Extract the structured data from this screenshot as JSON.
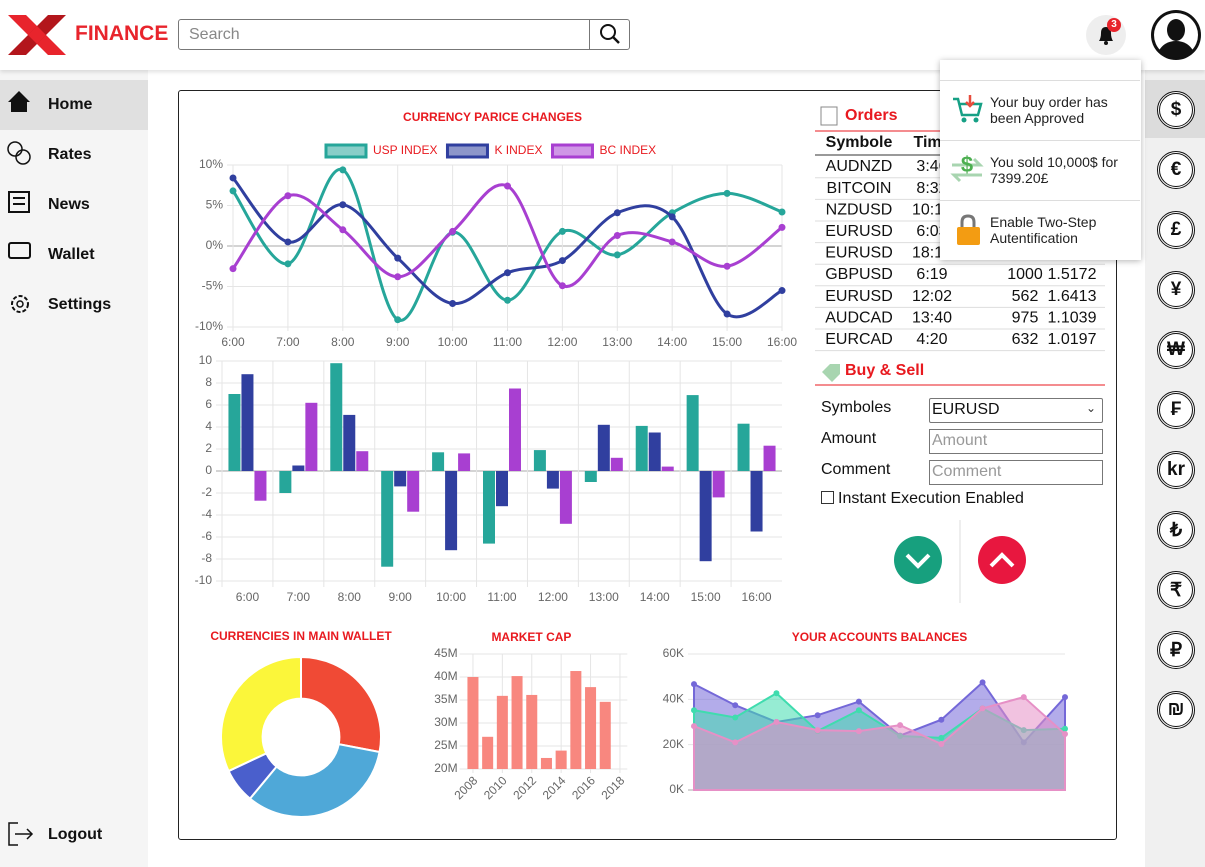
{
  "header": {
    "brand": "FINANCE",
    "search_placeholder": "Search",
    "notification_count": 3
  },
  "sidebar": {
    "items": [
      "Home",
      "Rates",
      "News",
      "Wallet",
      "Settings"
    ],
    "logout": "Logout"
  },
  "notifications": [
    {
      "text": "Your buy order has been Approved"
    },
    {
      "text": "You sold 10,000$ for 7399.20£"
    },
    {
      "text": "Enable Two-Step Autentification"
    }
  ],
  "currencies": [
    "$",
    "€",
    "£",
    "¥",
    "₩",
    "₣",
    "kr",
    "₺",
    "₹",
    "₽",
    "₪"
  ],
  "line_chart": {
    "type": "line",
    "title": "CURRENCY PARICE CHANGES",
    "categories": [
      "6:00",
      "7:00",
      "8:00",
      "9:00",
      "10:00",
      "11:00",
      "12:00",
      "13:00",
      "14:00",
      "15:00",
      "16:00"
    ],
    "series": [
      {
        "name": "USP INDEX",
        "color": "#26a69a",
        "values": [
          6.8,
          -2.2,
          9.4,
          -9.1,
          1.7,
          -6.7,
          1.8,
          -1.1,
          4.1,
          6.5,
          4.2
        ]
      },
      {
        "name": "K INDEX",
        "color": "#303f9f",
        "values": [
          8.4,
          0.5,
          5.1,
          -1.5,
          -7.1,
          -3.3,
          -1.8,
          4.1,
          3.6,
          -8.4,
          -5.5
        ]
      },
      {
        "name": "BC INDEX",
        "color": "#a83fd1",
        "values": [
          -2.8,
          6.2,
          2,
          -3.8,
          1.8,
          7.4,
          -4.9,
          1.3,
          0.5,
          -2.5,
          2.3
        ]
      }
    ],
    "ylim": [
      -10,
      10
    ],
    "yticks": [
      {
        "value": -10,
        "label": "-10%"
      },
      {
        "value": -5,
        "label": "-5%"
      },
      {
        "value": 0,
        "label": "0%"
      },
      {
        "value": 5,
        "label": "5%"
      },
      {
        "value": 10,
        "label": "10%"
      }
    ],
    "grid": true,
    "legend": "top"
  },
  "bar_chart": {
    "type": "bar",
    "categories": [
      "6:00",
      "7:00",
      "8:00",
      "9:00",
      "10:00",
      "11:00",
      "12:00",
      "13:00",
      "14:00",
      "15:00",
      "16:00"
    ],
    "series": [
      {
        "color": "#26a69a",
        "values": [
          7,
          -2,
          9.8,
          -8.7,
          1.7,
          -6.6,
          1.9,
          -1,
          4.1,
          6.9,
          4.3
        ]
      },
      {
        "color": "#303f9f",
        "values": [
          8.8,
          0.5,
          5.1,
          -1.4,
          -7.2,
          -3.2,
          -1.6,
          4.2,
          3.5,
          -8.2,
          -5.5
        ]
      },
      {
        "color": "#a83fd1",
        "values": [
          -2.7,
          6.2,
          1.8,
          -3.7,
          1.6,
          7.5,
          -4.8,
          1.2,
          0.4,
          -2.4,
          2.3
        ]
      }
    ],
    "ylim": [
      -10,
      10
    ],
    "yticks": [
      -10,
      -8,
      -6,
      -4,
      -2,
      0,
      2,
      4,
      6,
      8,
      10
    ],
    "grid": true
  },
  "orders": {
    "title": "Orders",
    "columns": [
      "Symbole",
      "Time"
    ],
    "rows": [
      [
        "AUDNZD",
        "3:46"
      ],
      [
        "BITCOIN",
        "8:32"
      ],
      [
        "NZDUSD",
        "10:15"
      ],
      [
        "EURUSD",
        "6:03"
      ],
      [
        "EURUSD",
        "18:10"
      ],
      [
        "GBPUSD",
        "6:19",
        1000,
        1.5172
      ],
      [
        "EURUSD",
        "12:02",
        562,
        1.6413
      ],
      [
        "AUDCAD",
        "13:40",
        975,
        1.1039
      ],
      [
        "EURCAD",
        "4:20",
        632,
        1.0197
      ]
    ]
  },
  "buy_sell": {
    "title": "Buy & Sell",
    "fields": [
      {
        "label": "Symboles",
        "value": "EURUSD"
      },
      {
        "label": "Amount",
        "placeholder": "Amount"
      },
      {
        "label": "Comment",
        "placeholder": "Comment"
      }
    ],
    "checkbox": "Instant Execution Enabled"
  },
  "wallet_chart": {
    "type": "pie",
    "title": "CURRENCIES IN MAIN WALLET",
    "values": [
      28,
      33,
      7,
      32
    ],
    "colors": [
      "#f04a35",
      "#4fa8d8",
      "#4a5fcc",
      "#fbf63a"
    ],
    "hole": true
  },
  "market_cap_chart": {
    "type": "bar",
    "title": "MARKET CAP",
    "x": [
      2008,
      2009,
      2010,
      2011,
      2012,
      2013,
      2014,
      2015,
      2016,
      2017
    ],
    "values": [
      40,
      27,
      35.9,
      40.2,
      36.1,
      22.4,
      24,
      41.3,
      37.8,
      34.6
    ],
    "color": "#f8877f",
    "xlim": [
      2007.5,
      2018.5
    ],
    "xticks": [
      2008,
      2010,
      2012,
      2014,
      2016,
      2018
    ],
    "ylim": [
      20,
      45
    ],
    "yticks": [
      {
        "value": 20,
        "label": "20M"
      },
      {
        "value": 25,
        "label": "25M"
      },
      {
        "value": 30,
        "label": "30M"
      },
      {
        "value": 35,
        "label": "35M"
      },
      {
        "value": 40,
        "label": "40M"
      },
      {
        "value": 45,
        "label": "45M"
      }
    ],
    "grid": true
  },
  "balances_chart": {
    "type": "area",
    "title": "YOUR ACCOUNTS BALANCES",
    "series": [
      {
        "color": "#7468d8",
        "values": [
          46.7,
          37.4,
          30,
          33,
          39,
          24,
          31,
          47.5,
          21,
          41
        ]
      },
      {
        "color": "#3fdcae",
        "values": [
          35.2,
          32,
          42.7,
          26,
          35.2,
          23.8,
          23,
          36,
          26.4,
          27
        ]
      },
      {
        "color": "#e690c6",
        "values": [
          28.2,
          21,
          30,
          26.4,
          26,
          28.6,
          20.3,
          36,
          41,
          24.7
        ]
      }
    ],
    "ylim": [
      0,
      60
    ],
    "yticks": [
      {
        "value": 0,
        "label": "0K"
      },
      {
        "value": 20,
        "label": "20K"
      },
      {
        "value": 40,
        "label": "40K"
      },
      {
        "value": 60,
        "label": "60K"
      }
    ],
    "grid": true
  }
}
